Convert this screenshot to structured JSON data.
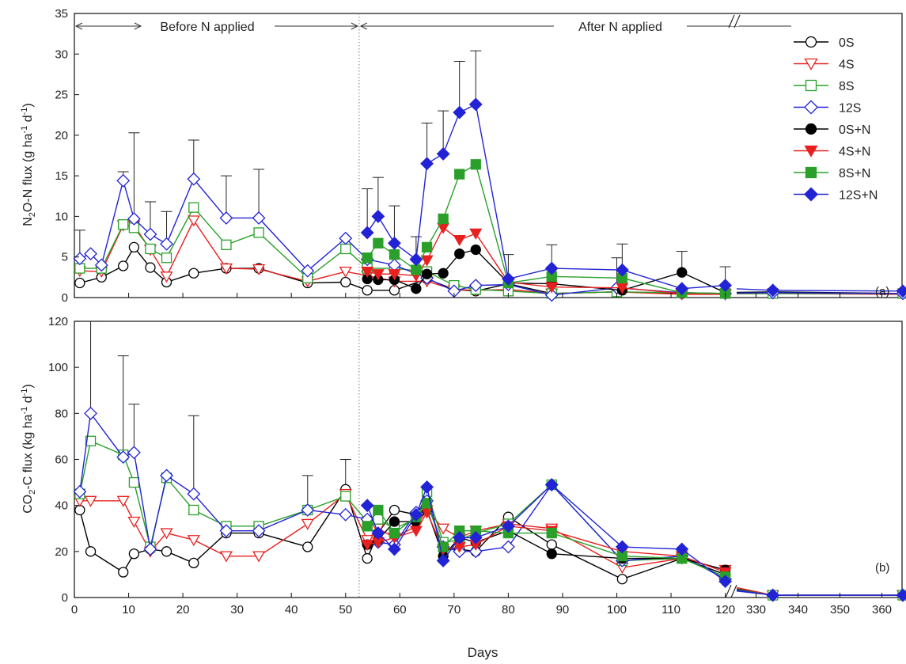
{
  "chart_data": [
    {
      "type": "line",
      "panel_label": "(a)",
      "ylabel": "N2O-N flux (g ha-1 d-1)",
      "ylabel_parts": {
        "a": "N",
        "b": "2",
        "c": "O-N flux (g ha",
        "d": "-1",
        "e": " d",
        "f": "-1",
        "g": ")"
      },
      "xlabel": "Days",
      "ylim": [
        0,
        35
      ],
      "yticks": [
        0,
        5,
        10,
        15,
        20,
        25,
        30,
        35
      ],
      "xticks_left": [
        0,
        10,
        20,
        30,
        40,
        50,
        60,
        70,
        80,
        90,
        100,
        110,
        120
      ],
      "xticks_right": [
        330,
        340,
        350,
        360
      ],
      "grid": false,
      "legend_position": "top-right",
      "annotations": {
        "before": "Before N applied",
        "after": "After N applied"
      },
      "series": [
        {
          "name": "0S",
          "color": "#000000",
          "marker": "circle",
          "filled": false,
          "x": [
            1,
            5,
            9,
            11,
            14,
            17,
            22,
            28,
            34,
            43,
            50,
            54,
            59,
            65,
            70,
            74,
            80,
            88,
            100,
            112,
            120,
            334,
            365
          ],
          "y": [
            1.8,
            2.5,
            3.9,
            6.2,
            3.7,
            1.9,
            3.0,
            3.6,
            3.6,
            1.8,
            1.9,
            0.9,
            0.9,
            2.3,
            1.0,
            0.8,
            1.7,
            0.5,
            0.7,
            0.5,
            0.5,
            0.7,
            0.5
          ]
        },
        {
          "name": "4S",
          "color": "#e8201f",
          "marker": "triangle-down",
          "filled": false,
          "x": [
            1,
            5,
            9,
            11,
            14,
            17,
            22,
            28,
            34,
            43,
            50,
            54,
            59,
            65,
            70,
            74,
            80,
            88,
            100,
            112,
            120,
            334,
            365
          ],
          "y": [
            3.3,
            3.2,
            8.9,
            8.9,
            5.9,
            2.6,
            9.5,
            3.6,
            3.5,
            2.0,
            3.2,
            2.7,
            2.0,
            2.0,
            1.0,
            0.9,
            1.0,
            0.5,
            0.7,
            0.4,
            0.4,
            0.5,
            0.4
          ]
        },
        {
          "name": "8S",
          "color": "#2aa02a",
          "marker": "square",
          "filled": false,
          "x": [
            1,
            5,
            9,
            11,
            14,
            17,
            22,
            28,
            34,
            43,
            50,
            54,
            59,
            65,
            70,
            74,
            80,
            88,
            100,
            112,
            120,
            334,
            365
          ],
          "y": [
            3.6,
            3.6,
            9.0,
            8.6,
            6.0,
            4.9,
            11.1,
            6.5,
            8.0,
            2.4,
            6.0,
            3.6,
            3.6,
            3.2,
            1.5,
            1.0,
            0.8,
            0.5,
            0.7,
            0.6,
            0.5,
            0.5,
            0.5
          ]
        },
        {
          "name": "12S",
          "color": "#2323d6",
          "marker": "diamond",
          "filled": false,
          "x": [
            1,
            3,
            5,
            9,
            11,
            14,
            17,
            22,
            28,
            34,
            43,
            50,
            54,
            59,
            65,
            70,
            74,
            80,
            88,
            100,
            112,
            120,
            334,
            365
          ],
          "y": [
            4.8,
            5.4,
            4.0,
            14.4,
            9.7,
            7.8,
            6.6,
            14.6,
            9.8,
            9.8,
            3.3,
            7.3,
            4.7,
            4.0,
            2.4,
            0.8,
            1.5,
            1.6,
            0.3,
            1.2,
            0.6,
            0.5,
            0.6,
            0.5
          ]
        },
        {
          "name": "0S+N",
          "color": "#000000",
          "marker": "circle",
          "filled": true,
          "x": [
            54,
            56,
            59,
            63,
            65,
            68,
            71,
            74,
            80,
            88,
            101,
            112,
            120
          ],
          "y": [
            2.3,
            2.2,
            2.2,
            1.1,
            2.9,
            3.0,
            5.4,
            5.9,
            1.8,
            1.7,
            0.9,
            3.1,
            0.6
          ]
        },
        {
          "name": "4S+N",
          "color": "#e8201f",
          "marker": "triangle-down",
          "filled": true,
          "x": [
            54,
            56,
            59,
            63,
            65,
            68,
            71,
            74,
            80,
            88,
            101,
            112,
            120
          ],
          "y": [
            3.2,
            2.9,
            2.9,
            2.7,
            4.6,
            8.6,
            7.1,
            7.9,
            1.9,
            1.3,
            1.2,
            0.5,
            0.5
          ]
        },
        {
          "name": "8S+N",
          "color": "#2aa02a",
          "marker": "square",
          "filled": true,
          "x": [
            54,
            56,
            59,
            63,
            65,
            68,
            71,
            74,
            80,
            88,
            101,
            112,
            120
          ],
          "y": [
            4.9,
            6.7,
            5.3,
            3.4,
            6.2,
            9.7,
            15.2,
            16.4,
            1.8,
            2.6,
            2.4,
            0.6,
            0.5
          ]
        },
        {
          "name": "12S+N",
          "color": "#2323d6",
          "marker": "diamond",
          "filled": true,
          "x": [
            54,
            56,
            59,
            63,
            65,
            68,
            71,
            74,
            80,
            88,
            101,
            112,
            120,
            334,
            365
          ],
          "y": [
            8.0,
            10.0,
            6.7,
            4.7,
            16.5,
            17.7,
            22.8,
            23.8,
            2.3,
            3.6,
            3.4,
            1.1,
            1.5,
            0.9,
            0.8
          ]
        }
      ],
      "error_bars": [
        {
          "x": 1,
          "top": 8.3
        },
        {
          "x": 9,
          "top": 15.5
        },
        {
          "x": 11,
          "top": 20.3
        },
        {
          "x": 14,
          "top": 11.8
        },
        {
          "x": 17,
          "top": 10.6
        },
        {
          "x": 22,
          "top": 19.4
        },
        {
          "x": 28,
          "top": 15.0
        },
        {
          "x": 34,
          "top": 15.8
        },
        {
          "x": 54,
          "top": 13.4
        },
        {
          "x": 56,
          "top": 14.8
        },
        {
          "x": 59,
          "top": 11.3
        },
        {
          "x": 63,
          "top": 7.5
        },
        {
          "x": 65,
          "top": 21.5
        },
        {
          "x": 68,
          "top": 23.0
        },
        {
          "x": 71,
          "top": 29.1
        },
        {
          "x": 74,
          "top": 30.4
        },
        {
          "x": 80,
          "top": 5.3
        },
        {
          "x": 88,
          "top": 6.5
        },
        {
          "x": 100,
          "top": 4.9
        },
        {
          "x": 101,
          "top": 6.6
        },
        {
          "x": 112,
          "top": 5.7
        },
        {
          "x": 120,
          "top": 3.8
        }
      ]
    },
    {
      "type": "line",
      "panel_label": "(b)",
      "ylabel": "CO2-C flux (kg ha-1 d-1)",
      "ylabel_parts": {
        "a": "CO",
        "b": "2",
        "c": "-C flux (kg ha",
        "d": "-1",
        "e": " d",
        "f": "-1",
        "g": ")"
      },
      "xlabel": "Days",
      "ylim": [
        0,
        120
      ],
      "yticks": [
        0,
        20,
        40,
        60,
        80,
        100,
        120
      ],
      "xticks_left": [
        0,
        10,
        20,
        30,
        40,
        50,
        60,
        70,
        80,
        90,
        100,
        110,
        120
      ],
      "xticks_right": [
        330,
        340,
        350,
        360
      ],
      "grid": false,
      "series": [
        {
          "name": "0S",
          "color": "#000000",
          "marker": "circle",
          "filled": false,
          "x": [
            1,
            3,
            9,
            11,
            14,
            17,
            22,
            28,
            34,
            43,
            50,
            54,
            56,
            59,
            63,
            65,
            68,
            71,
            74,
            80,
            88,
            101,
            112,
            120,
            334,
            365
          ],
          "y": [
            38,
            20,
            11,
            19,
            21,
            20,
            15,
            28,
            28,
            22,
            47,
            17,
            28,
            38,
            36,
            42,
            21,
            21,
            20,
            35,
            23,
            8,
            17,
            10,
            1,
            1
          ]
        },
        {
          "name": "4S",
          "color": "#e8201f",
          "marker": "triangle-down",
          "filled": false,
          "x": [
            1,
            3,
            9,
            11,
            14,
            17,
            22,
            28,
            34,
            43,
            50,
            54,
            56,
            59,
            63,
            65,
            68,
            71,
            74,
            80,
            88,
            101,
            112,
            120,
            334,
            365
          ],
          "y": [
            42,
            42,
            42,
            33,
            20,
            28,
            25,
            18,
            18,
            32,
            45,
            25,
            30,
            26,
            31,
            38,
            30,
            26,
            29,
            32,
            30,
            13,
            17,
            12,
            1,
            1
          ]
        },
        {
          "name": "8S",
          "color": "#2aa02a",
          "marker": "square",
          "filled": false,
          "x": [
            1,
            3,
            9,
            11,
            14,
            17,
            22,
            28,
            34,
            43,
            50,
            54,
            56,
            59,
            63,
            65,
            68,
            71,
            74,
            80,
            88,
            101,
            112,
            120,
            334,
            365
          ],
          "y": [
            45,
            68,
            62,
            50,
            22,
            52,
            38,
            31,
            31,
            38,
            44,
            33,
            34,
            30,
            34,
            46,
            24,
            25,
            28,
            32,
            49,
            16,
            17,
            9,
            1,
            1
          ]
        },
        {
          "name": "12S",
          "color": "#2323d6",
          "marker": "diamond",
          "filled": false,
          "x": [
            1,
            3,
            9,
            11,
            14,
            17,
            22,
            28,
            34,
            43,
            50,
            54,
            56,
            59,
            63,
            65,
            68,
            71,
            74,
            80,
            88,
            101,
            112,
            120,
            334,
            365
          ],
          "y": [
            46,
            80,
            61,
            63,
            21,
            53,
            45,
            29,
            29,
            38,
            36,
            34,
            24,
            23,
            37,
            42,
            22,
            20,
            20,
            22,
            49,
            16,
            18,
            8,
            1,
            1
          ]
        },
        {
          "name": "0S+N",
          "color": "#000000",
          "marker": "circle",
          "filled": true,
          "x": [
            54,
            56,
            59,
            63,
            65,
            68,
            71,
            74,
            80,
            88,
            101,
            112,
            120
          ],
          "y": [
            23,
            25,
            33,
            33,
            38,
            18,
            26,
            24,
            29,
            19,
            17,
            17,
            12
          ]
        },
        {
          "name": "4S+N",
          "color": "#e8201f",
          "marker": "triangle-down",
          "filled": true,
          "x": [
            54,
            56,
            59,
            63,
            65,
            68,
            71,
            74,
            80,
            88,
            101,
            112,
            120
          ],
          "y": [
            23,
            24,
            26,
            29,
            37,
            21,
            22,
            23,
            31,
            29,
            20,
            18,
            11
          ]
        },
        {
          "name": "8S+N",
          "color": "#2aa02a",
          "marker": "square",
          "filled": true,
          "x": [
            54,
            56,
            59,
            63,
            65,
            68,
            71,
            74,
            80,
            88,
            101,
            112,
            120
          ],
          "y": [
            31,
            38,
            28,
            35,
            41,
            22,
            29,
            29,
            28,
            28,
            18,
            17,
            9
          ]
        },
        {
          "name": "12S+N",
          "color": "#2323d6",
          "marker": "diamond",
          "filled": true,
          "x": [
            54,
            56,
            59,
            63,
            65,
            68,
            71,
            74,
            80,
            88,
            101,
            112,
            120,
            334,
            365
          ],
          "y": [
            40,
            28,
            21,
            36,
            48,
            16,
            26,
            26,
            31,
            49,
            22,
            21,
            7,
            1,
            1
          ]
        }
      ],
      "error_bars": [
        {
          "x": 1,
          "top": 47
        },
        {
          "x": 3,
          "top": 120
        },
        {
          "x": 9,
          "top": 105
        },
        {
          "x": 11,
          "top": 84
        },
        {
          "x": 22,
          "top": 79
        },
        {
          "x": 43,
          "top": 53
        },
        {
          "x": 50,
          "top": 60
        }
      ]
    }
  ]
}
